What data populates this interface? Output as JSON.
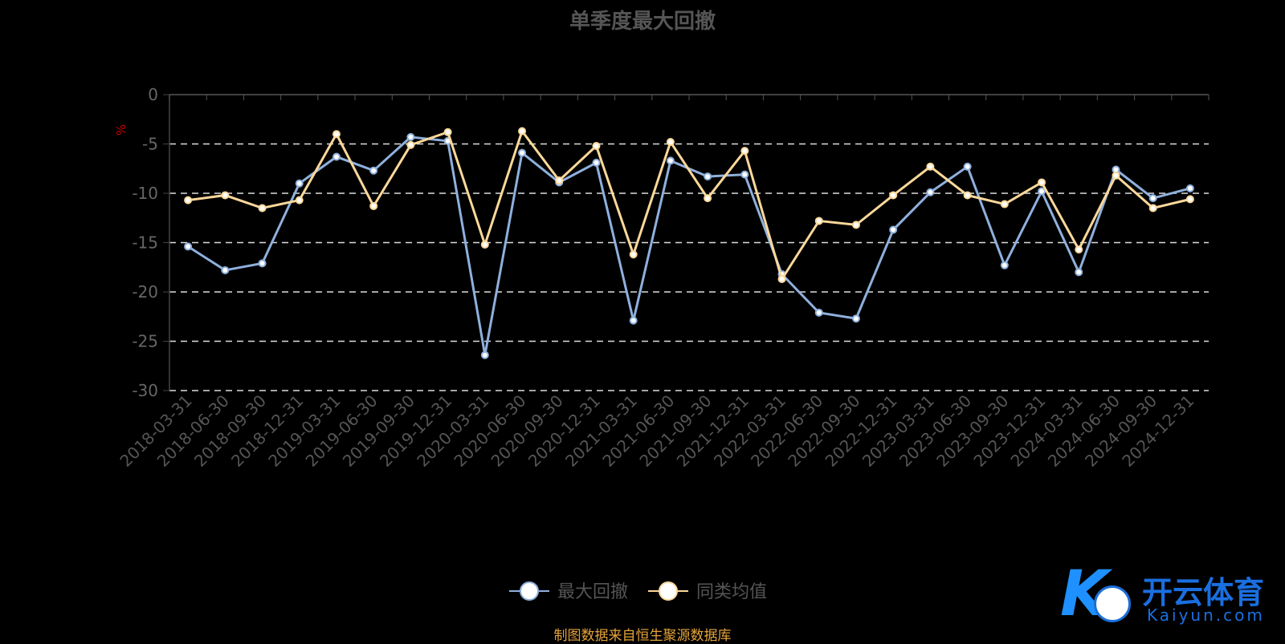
{
  "chart_data": {
    "type": "line",
    "title": "单季度最大回撤",
    "ylabel": "%",
    "ylim": [
      -30,
      0
    ],
    "yticks": [
      0,
      -5,
      -10,
      -15,
      -20,
      -25,
      -30
    ],
    "grid": true,
    "legend_position": "bottom",
    "categories": [
      "2018-03-31",
      "2018-06-30",
      "2018-09-30",
      "2018-12-31",
      "2019-03-31",
      "2019-06-30",
      "2019-09-30",
      "2019-12-31",
      "2020-03-31",
      "2020-06-30",
      "2020-09-30",
      "2020-12-31",
      "2021-03-31",
      "2021-06-30",
      "2021-09-30",
      "2021-12-31",
      "2022-03-31",
      "2022-06-30",
      "2022-09-30",
      "2022-12-31",
      "2023-03-31",
      "2023-06-30",
      "2023-09-30",
      "2023-12-31",
      "2024-03-31",
      "2024-06-30",
      "2024-09-30",
      "2024-12-31"
    ],
    "series": [
      {
        "name": "最大回撤",
        "color": "#8fb0dd",
        "values": [
          -15.4,
          -17.8,
          -17.1,
          -9.0,
          -6.3,
          -7.7,
          -4.3,
          -4.7,
          -26.4,
          -5.9,
          -8.9,
          -6.9,
          -22.9,
          -6.7,
          -8.3,
          -8.1,
          -18.2,
          -22.1,
          -22.7,
          -13.7,
          -9.9,
          -7.3,
          -17.3,
          -9.8,
          -18.0,
          -7.6,
          -10.5,
          -9.5
        ]
      },
      {
        "name": "同类均值",
        "color": "#fcd89a",
        "values": [
          -10.7,
          -10.2,
          -11.5,
          -10.7,
          -4.0,
          -11.3,
          -5.1,
          -3.8,
          -15.2,
          -3.7,
          -8.7,
          -5.2,
          -16.2,
          -4.8,
          -10.5,
          -5.7,
          -18.7,
          -12.8,
          -13.2,
          -10.2,
          -7.3,
          -10.2,
          -11.1,
          -8.9,
          -15.7,
          -8.2,
          -11.5,
          -10.6
        ]
      }
    ]
  },
  "source": "制图数据来自恒生聚源数据库",
  "logo": {
    "cn": "开云体育",
    "en": "Kaiyun.com"
  }
}
